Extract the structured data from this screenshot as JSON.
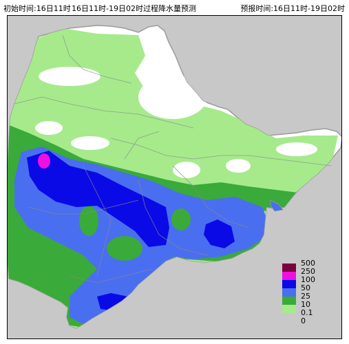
{
  "header": {
    "init_time": "初始时间:16日11时",
    "title": "16日11时-19日02时过程降水量预测",
    "forecast_time": "预报时间:16日11时-19日02时"
  },
  "legend": {
    "levels": [
      {
        "label": "500",
        "color": "#7a0040"
      },
      {
        "label": "250",
        "color": "#ee10e0"
      },
      {
        "label": "100",
        "color": "#0a0ae6"
      },
      {
        "label": "50",
        "color": "#4a6ef0"
      },
      {
        "label": "25",
        "color": "#3aaa3a"
      },
      {
        "label": "10",
        "color": "#a6ea8c"
      },
      {
        "label": "0.1",
        "color": ""
      },
      {
        "label": "0",
        "color": ""
      }
    ]
  },
  "colors": {
    "outside": "#c8c8c8",
    "region_dry": "#ffffff",
    "light": "#a6ea8c",
    "moderate": "#3aaa3a",
    "heavy": "#4a6ef0",
    "very_heavy": "#0a0ae6",
    "extreme": "#ee10e0"
  }
}
